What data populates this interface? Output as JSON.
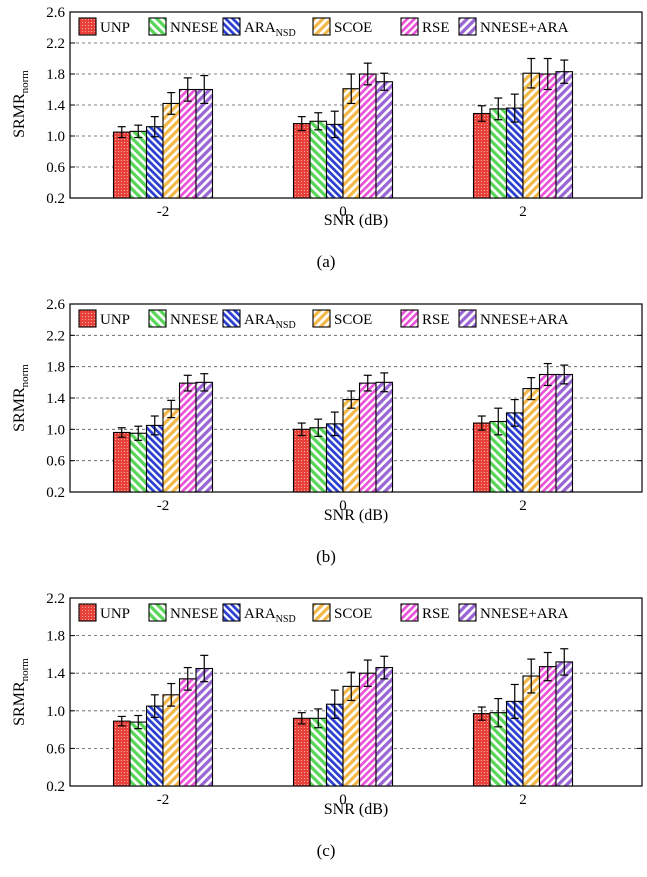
{
  "chart_data": [
    {
      "type": "bar",
      "panel_label": "(a)",
      "xlabel": "SNR (dB)",
      "ylabel": "SRMR",
      "ylabel_sub": "norm",
      "categories": [
        "-2",
        "0",
        "2"
      ],
      "ylim": [
        0.2,
        2.6
      ],
      "yticks": [
        "0.2",
        "0.6",
        "1.0",
        "1.4",
        "1.8",
        "2.2",
        "2.6"
      ],
      "grid": "horizontal-dashed",
      "legend": "top",
      "series": [
        {
          "name": "UNP",
          "values": [
            1.05,
            1.16,
            1.29
          ],
          "errors": [
            0.07,
            0.09,
            0.1
          ]
        },
        {
          "name": "NNESE",
          "values": [
            1.06,
            1.19,
            1.35
          ],
          "errors": [
            0.08,
            0.11,
            0.14
          ]
        },
        {
          "name": "ARA",
          "name_sub": "NSD",
          "values": [
            1.12,
            1.15,
            1.36
          ],
          "errors": [
            0.13,
            0.17,
            0.18
          ]
        },
        {
          "name": "SCOE",
          "values": [
            1.42,
            1.61,
            1.81
          ],
          "errors": [
            0.14,
            0.19,
            0.19
          ]
        },
        {
          "name": "RSE",
          "values": [
            1.6,
            1.8,
            1.8
          ],
          "errors": [
            0.15,
            0.14,
            0.2
          ]
        },
        {
          "name": "NNESE+ARA",
          "values": [
            1.6,
            1.7,
            1.83
          ],
          "errors": [
            0.18,
            0.11,
            0.15
          ]
        }
      ]
    },
    {
      "type": "bar",
      "panel_label": "(b)",
      "xlabel": "SNR (dB)",
      "ylabel": "SRMR",
      "ylabel_sub": "norm",
      "categories": [
        "-2",
        "0",
        "2"
      ],
      "ylim": [
        0.2,
        2.6
      ],
      "yticks": [
        "0.2",
        "0.6",
        "1.0",
        "1.4",
        "1.8",
        "2.2",
        "2.6"
      ],
      "grid": "horizontal-dashed",
      "legend": "top",
      "series": [
        {
          "name": "UNP",
          "values": [
            0.96,
            1.0,
            1.08
          ],
          "errors": [
            0.06,
            0.08,
            0.09
          ]
        },
        {
          "name": "NNESE",
          "values": [
            0.95,
            1.02,
            1.1
          ],
          "errors": [
            0.09,
            0.11,
            0.17
          ]
        },
        {
          "name": "ARA",
          "name_sub": "NSD",
          "values": [
            1.05,
            1.07,
            1.21
          ],
          "errors": [
            0.12,
            0.15,
            0.17
          ]
        },
        {
          "name": "SCOE",
          "values": [
            1.26,
            1.38,
            1.52
          ],
          "errors": [
            0.11,
            0.11,
            0.14
          ]
        },
        {
          "name": "RSE",
          "values": [
            1.59,
            1.59,
            1.7
          ],
          "errors": [
            0.1,
            0.1,
            0.14
          ]
        },
        {
          "name": "NNESE+ARA",
          "values": [
            1.6,
            1.6,
            1.7
          ],
          "errors": [
            0.11,
            0.12,
            0.12
          ]
        }
      ]
    },
    {
      "type": "bar",
      "panel_label": "(c)",
      "xlabel": "SNR (dB)",
      "ylabel": "SRMR",
      "ylabel_sub": "norm",
      "categories": [
        "-2",
        "0",
        "2"
      ],
      "ylim": [
        0.2,
        2.2
      ],
      "yticks": [
        "0.2",
        "0.6",
        "1.0",
        "1.4",
        "1.8",
        "2.2"
      ],
      "grid": "horizontal-dashed",
      "legend": "top",
      "series": [
        {
          "name": "UNP",
          "values": [
            0.89,
            0.92,
            0.97
          ],
          "errors": [
            0.05,
            0.06,
            0.07
          ]
        },
        {
          "name": "NNESE",
          "values": [
            0.88,
            0.92,
            0.98
          ],
          "errors": [
            0.07,
            0.1,
            0.15
          ]
        },
        {
          "name": "ARA",
          "name_sub": "NSD",
          "values": [
            1.05,
            1.07,
            1.1
          ],
          "errors": [
            0.12,
            0.15,
            0.18
          ]
        },
        {
          "name": "SCOE",
          "values": [
            1.17,
            1.26,
            1.37
          ],
          "errors": [
            0.12,
            0.15,
            0.18
          ]
        },
        {
          "name": "RSE",
          "values": [
            1.34,
            1.4,
            1.47
          ],
          "errors": [
            0.12,
            0.14,
            0.15
          ]
        },
        {
          "name": "NNESE+ARA",
          "values": [
            1.45,
            1.46,
            1.52
          ],
          "errors": [
            0.14,
            0.12,
            0.14
          ]
        }
      ]
    }
  ],
  "style": {
    "series_colors": [
      "#e8413a",
      "#59d659",
      "#2a3fd0",
      "#f3b84a",
      "#ea52d8",
      "#9a66d4"
    ],
    "grid_color": "#555555",
    "axis_color": "#000000"
  }
}
